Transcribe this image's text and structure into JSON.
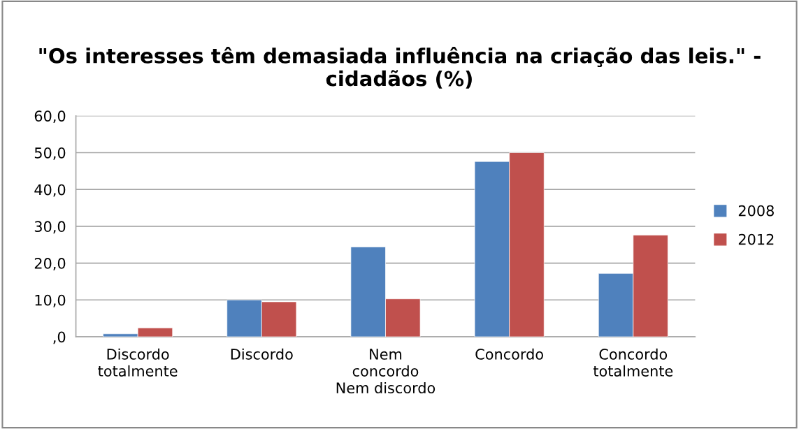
{
  "chart_data": {
    "type": "bar",
    "title": "\"Os interesses têm demasiada influência na criação das leis.\" - cidadãos (%)",
    "categories": [
      "Discordo\ntotalmente",
      "Discordo",
      "Nem\nconcordo\nNem discordo",
      "Concordo",
      "Concordo\ntotalmente"
    ],
    "series": [
      {
        "name": "2008",
        "color": "#4f81bd",
        "values": [
          0.8,
          10.0,
          24.4,
          47.6,
          17.2
        ]
      },
      {
        "name": "2012",
        "color": "#c0504d",
        "values": [
          2.4,
          9.5,
          10.3,
          50.0,
          27.6
        ]
      }
    ],
    "ylim": [
      0,
      60
    ],
    "yticks": [
      {
        "value": 0,
        "label": ",0"
      },
      {
        "value": 10,
        "label": "10,0"
      },
      {
        "value": 20,
        "label": "20,0"
      },
      {
        "value": 30,
        "label": "30,0"
      },
      {
        "value": 40,
        "label": "40,0"
      },
      {
        "value": 50,
        "label": "50,0"
      },
      {
        "value": 60,
        "label": "60,0"
      }
    ],
    "grid": "y",
    "legend": "right"
  }
}
